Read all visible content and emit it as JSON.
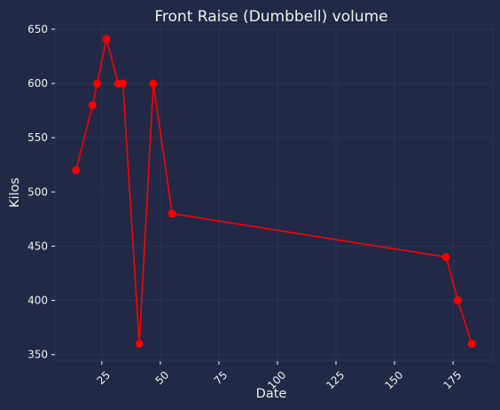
{
  "chart_data": {
    "type": "line",
    "title": "Front Raise (Dumbbell) volume",
    "xlabel": "Date",
    "ylabel": "Kilos",
    "xlim": [
      5,
      192
    ],
    "ylim": [
      344,
      654
    ],
    "xticks": [
      25,
      50,
      75,
      100,
      125,
      150,
      175
    ],
    "yticks": [
      350,
      400,
      450,
      500,
      550,
      600,
      650
    ],
    "grid": true,
    "series": [
      {
        "color": "#ff0000",
        "x": [
          14,
          21,
          23,
          27,
          32,
          34,
          41,
          47,
          55,
          172,
          177,
          183
        ],
        "y": [
          520,
          580,
          600,
          641,
          600,
          600,
          360,
          600,
          480,
          440,
          400,
          360
        ]
      }
    ]
  },
  "colors": {
    "background": "#212946",
    "grid": "#2A3459",
    "text": "#f0f0f0",
    "line": "#ff0000"
  }
}
